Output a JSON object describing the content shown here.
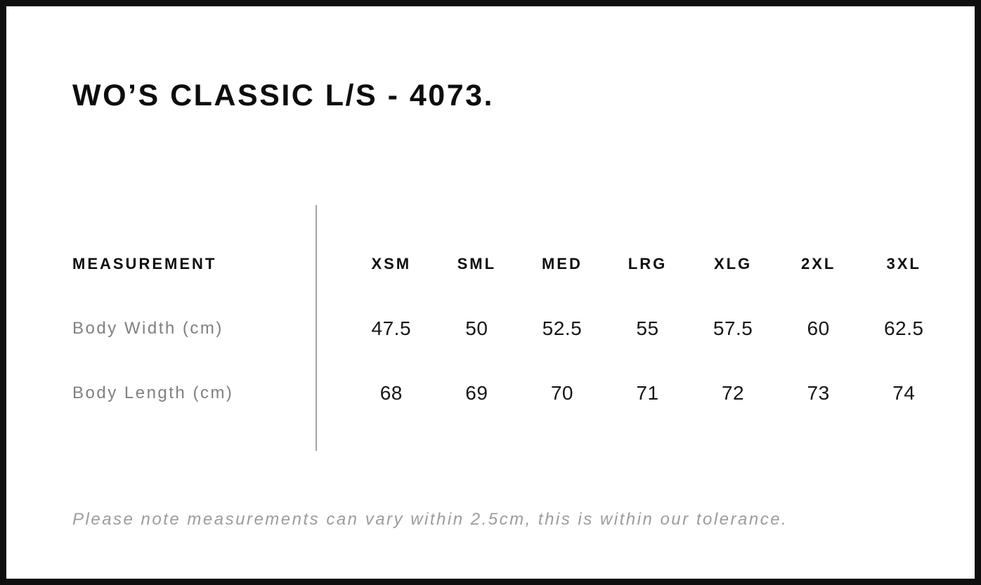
{
  "page": {
    "title": "WO’S CLASSIC L/S - 4073.",
    "footnote": "Please note measurements can vary within 2.5cm, this is within our tolerance."
  },
  "table": {
    "header_label": "MEASUREMENT",
    "size_headers": [
      "XSM",
      "SML",
      "MED",
      "LRG",
      "XLG",
      "2XL",
      "3XL"
    ],
    "rows": [
      {
        "label": "Body Width (cm)",
        "values": [
          "47.5",
          "50",
          "52.5",
          "55",
          "57.5",
          "60",
          "62.5"
        ]
      },
      {
        "label": "Body Length (cm)",
        "values": [
          "68",
          "69",
          "70",
          "71",
          "72",
          "73",
          "74"
        ]
      }
    ]
  },
  "colors": {
    "background": "#ffffff",
    "frame_border": "#0f0f0f",
    "heading_text": "#0d0d0d",
    "value_text": "#161616",
    "row_label_text": "#808080",
    "footnote_text": "#9c9c9c",
    "divider": "#a3a3a3"
  },
  "chart_data": {
    "type": "table",
    "title": "WO’S CLASSIC L/S - 4073.",
    "columns": [
      "MEASUREMENT",
      "XSM",
      "SML",
      "MED",
      "LRG",
      "XLG",
      "2XL",
      "3XL"
    ],
    "rows": [
      [
        "Body Width (cm)",
        47.5,
        50,
        52.5,
        55,
        57.5,
        60,
        62.5
      ],
      [
        "Body Length (cm)",
        68,
        69,
        70,
        71,
        72,
        73,
        74
      ]
    ],
    "note": "Please note measurements can vary within 2.5cm, this is within our tolerance."
  }
}
